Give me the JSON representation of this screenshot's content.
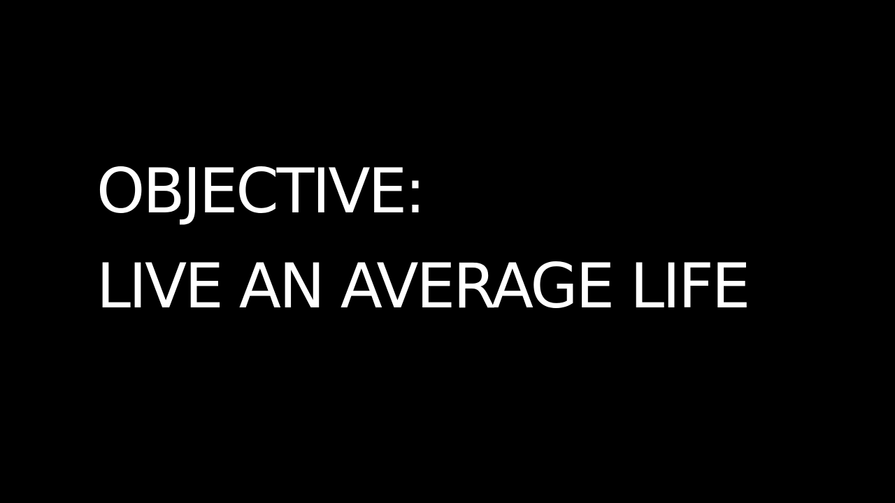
{
  "slide": {
    "lines": [
      "OBJECTIVE:",
      "LIVE AN AVERAGE LIFE"
    ]
  },
  "colors": {
    "background": "#000000",
    "text": "#ffffff"
  }
}
